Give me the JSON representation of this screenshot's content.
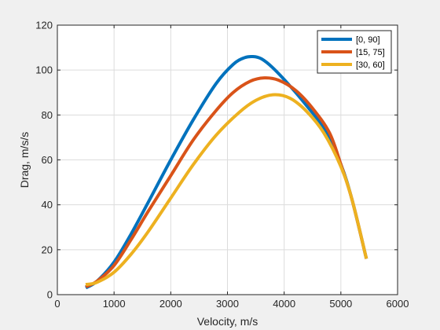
{
  "chart_data": {
    "type": "line",
    "xlabel": "Velocity, m/s",
    "ylabel": "Drag, m/s/s",
    "xlim": [
      0,
      6000
    ],
    "ylim": [
      0,
      120
    ],
    "xticks": [
      0,
      1000,
      2000,
      3000,
      4000,
      5000,
      6000
    ],
    "yticks": [
      0,
      20,
      40,
      60,
      80,
      100,
      120
    ],
    "grid": true,
    "legend_position": "top-right",
    "series": [
      {
        "name": "[0, 90]",
        "color": "#0072BD",
        "x": [
          500,
          700,
          1000,
          1300,
          1600,
          2000,
          2400,
          2800,
          3100,
          3300,
          3450,
          3600,
          3800,
          4100,
          4400,
          4700,
          5000,
          5200,
          5450
        ],
        "y": [
          3.0,
          6.0,
          14.5,
          27.0,
          41.0,
          60.0,
          78.0,
          94.0,
          102.5,
          105.5,
          106.0,
          105.0,
          101.0,
          93.0,
          84.0,
          74.0,
          58.0,
          42.0,
          16.0
        ]
      },
      {
        "name": "[15, 75]",
        "color": "#D95319",
        "x": [
          500,
          700,
          1000,
          1300,
          1600,
          2000,
          2400,
          2800,
          3100,
          3400,
          3650,
          3900,
          4200,
          4500,
          4800,
          5000,
          5200,
          5450
        ],
        "y": [
          3.5,
          6.0,
          13.0,
          24.5,
          37.0,
          53.0,
          69.0,
          82.0,
          90.0,
          95.0,
          96.5,
          95.5,
          91.0,
          83.0,
          72.0,
          58.0,
          42.0,
          16.0
        ]
      },
      {
        "name": "[30, 60]",
        "color": "#EDB120",
        "x": [
          500,
          700,
          1000,
          1300,
          1600,
          2000,
          2400,
          2800,
          3200,
          3500,
          3800,
          4100,
          4400,
          4700,
          5000,
          5200,
          5450
        ],
        "y": [
          4.5,
          5.5,
          10.0,
          18.0,
          28.0,
          43.0,
          58.0,
          71.0,
          81.0,
          86.5,
          89.0,
          87.5,
          81.5,
          72.0,
          57.0,
          42.0,
          16.0
        ]
      }
    ]
  }
}
